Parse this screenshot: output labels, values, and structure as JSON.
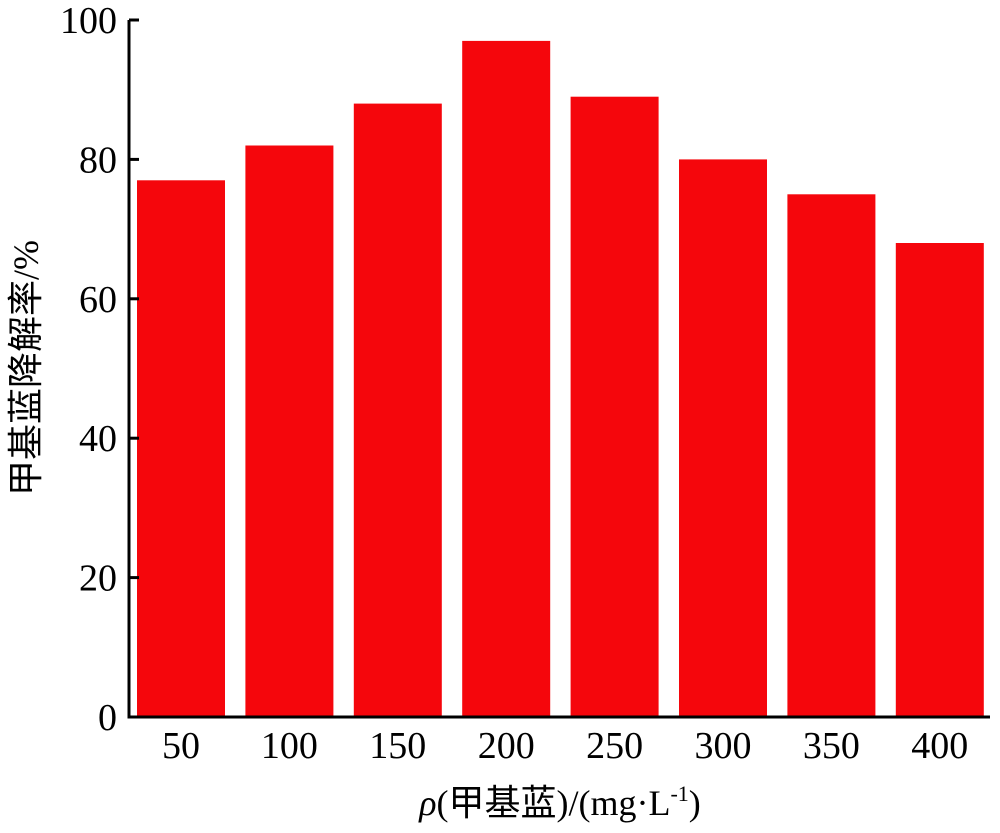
{
  "chart_data": {
    "type": "bar",
    "title": "",
    "xlabel": {
      "symbol": "ρ",
      "rest": "(甲基蓝)/(mg·L",
      "sup": "-1",
      "close": ")"
    },
    "ylabel": "甲基蓝降解率/%",
    "categories": [
      "50",
      "100",
      "150",
      "200",
      "250",
      "300",
      "350",
      "400"
    ],
    "values": [
      77,
      82,
      88,
      97,
      89,
      80,
      75,
      68
    ],
    "ylim": [
      0,
      100
    ],
    "yticks": [
      0,
      20,
      40,
      60,
      80,
      100
    ],
    "bar_color": "#f5060c",
    "grid": false,
    "legend": "none"
  }
}
